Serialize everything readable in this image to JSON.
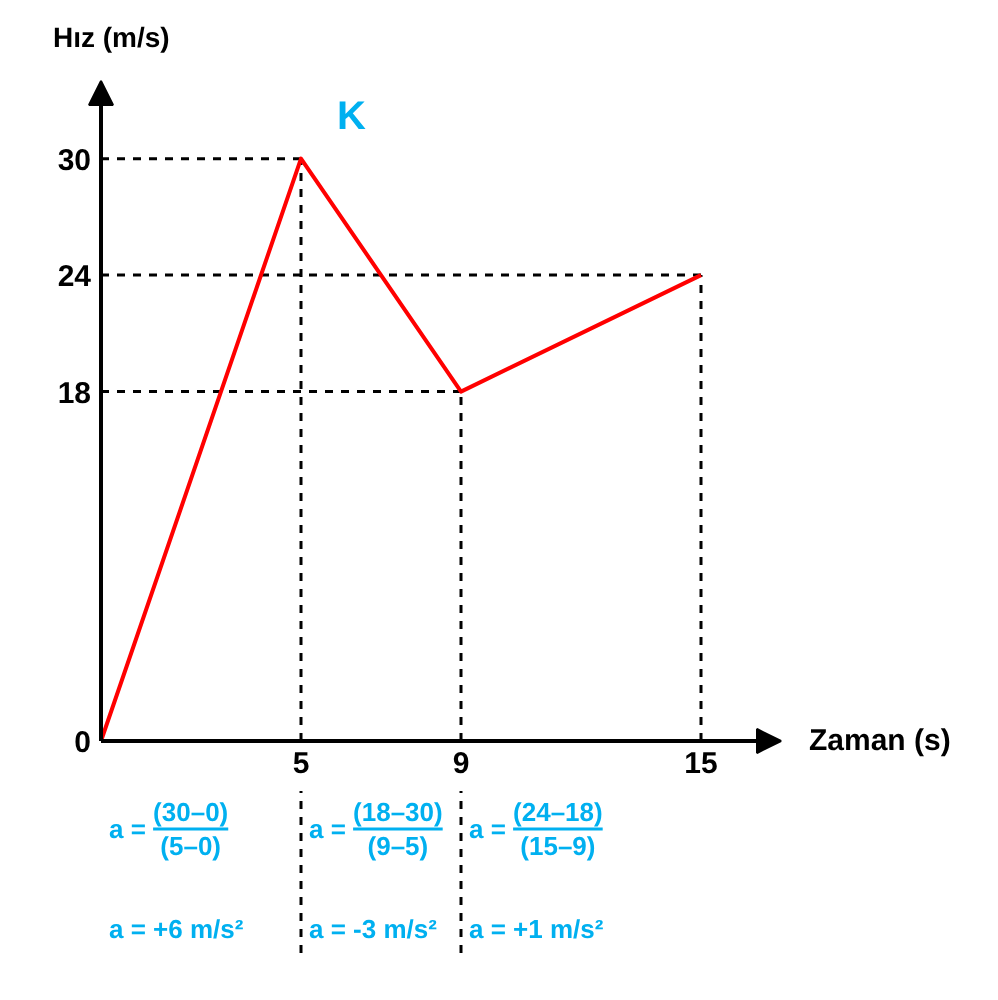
{
  "chart_data": {
    "type": "line",
    "xlabel": "Zaman (s)",
    "ylabel": "Hız (m/s)",
    "x": [
      0,
      5,
      9,
      15
    ],
    "series": [
      {
        "color": "#ff0000",
        "values": [
          0,
          30,
          18,
          24
        ]
      }
    ],
    "line_style": "solid",
    "xlim": [
      0,
      17
    ],
    "ylim": [
      0,
      34
    ],
    "xticks": [
      5,
      9,
      15
    ],
    "yticks": [
      0,
      18,
      24,
      30
    ],
    "ref_lines": [
      {
        "axis": "y",
        "value": 30,
        "color": "#000000",
        "line_style": "dashed"
      },
      {
        "axis": "y",
        "value": 24,
        "color": "#000000",
        "line_style": "dashed"
      },
      {
        "axis": "y",
        "value": 18,
        "color": "#000000",
        "line_style": "dashed"
      },
      {
        "axis": "x",
        "value": 5,
        "color": "#000000",
        "line_style": "dashed"
      },
      {
        "axis": "x",
        "value": 9,
        "color": "#000000",
        "line_style": "dashed"
      },
      {
        "axis": "x",
        "value": 15,
        "color": "#000000",
        "line_style": "dashed"
      }
    ],
    "annotations": [
      {
        "text": "K",
        "x": 5,
        "y": 30
      },
      "a =",
      "(30–0)",
      "(5–0)",
      "a =",
      "(18–30)",
      "(9–5)",
      "a =",
      "(24–18)",
      "(15–9)",
      "a = +6 m/s²",
      "a = -3 m/s²",
      "a = +1 m/s²"
    ]
  }
}
